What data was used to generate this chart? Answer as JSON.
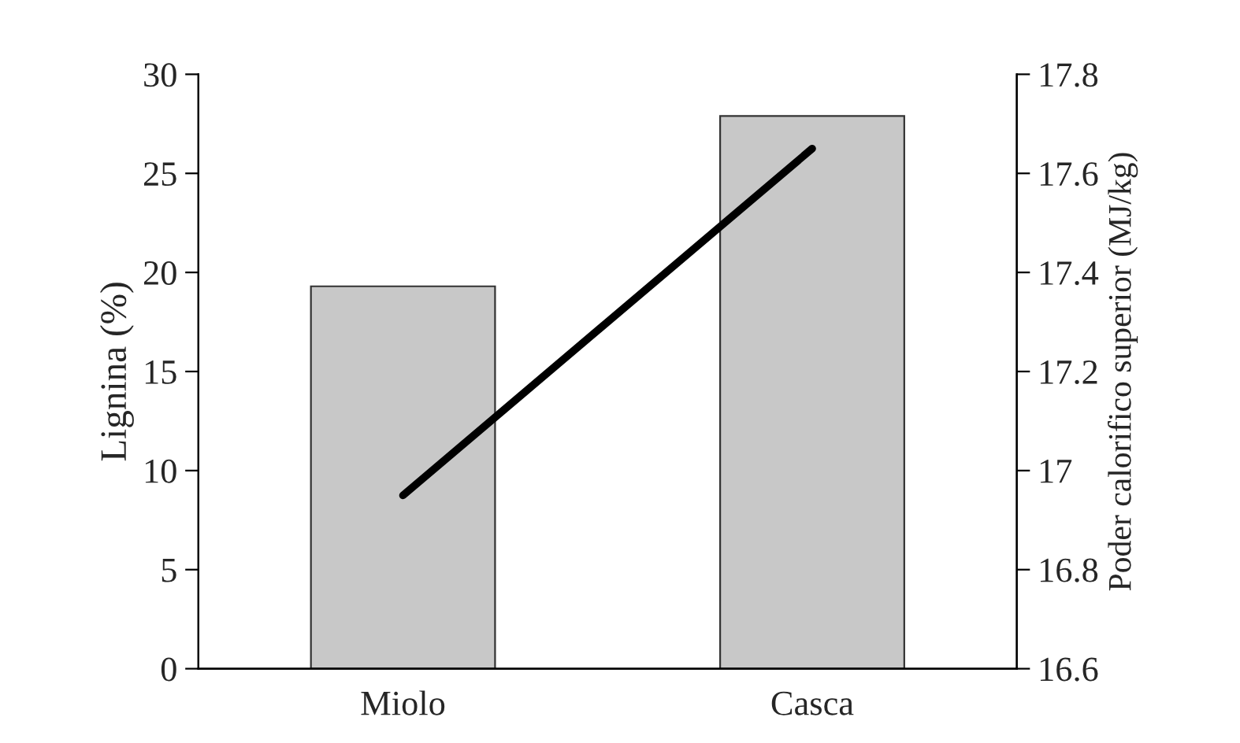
{
  "chart_data": {
    "type": "bar",
    "categories": [
      "Miolo",
      "Casca"
    ],
    "ylabel": "Lignina (%)",
    "y2label": "Poder calorifico superior (MJ/kg)",
    "ylim": [
      0,
      30
    ],
    "yticks": [
      0,
      5,
      10,
      15,
      20,
      25,
      30
    ],
    "y2lim": [
      16.6,
      17.8
    ],
    "y2ticks": [
      {
        "value": 16.6,
        "label": "16.6"
      },
      {
        "value": 16.8,
        "label": "16.8"
      },
      {
        "value": 17,
        "label": "17"
      },
      {
        "value": 17.2,
        "label": "17.2"
      },
      {
        "value": 17.4,
        "label": "17.4"
      },
      {
        "value": 17.6,
        "label": "17.6"
      },
      {
        "value": 17.8,
        "label": "17.8"
      }
    ],
    "series": [
      {
        "color": "#c8c8c8",
        "values": [
          19.3,
          27.9
        ]
      },
      {
        "type": "line",
        "axis": "y2",
        "color": "#000000",
        "values": [
          16.95,
          17.65
        ]
      }
    ],
    "grid": false,
    "legend": false,
    "marker": "none",
    "line_style": "solid"
  }
}
